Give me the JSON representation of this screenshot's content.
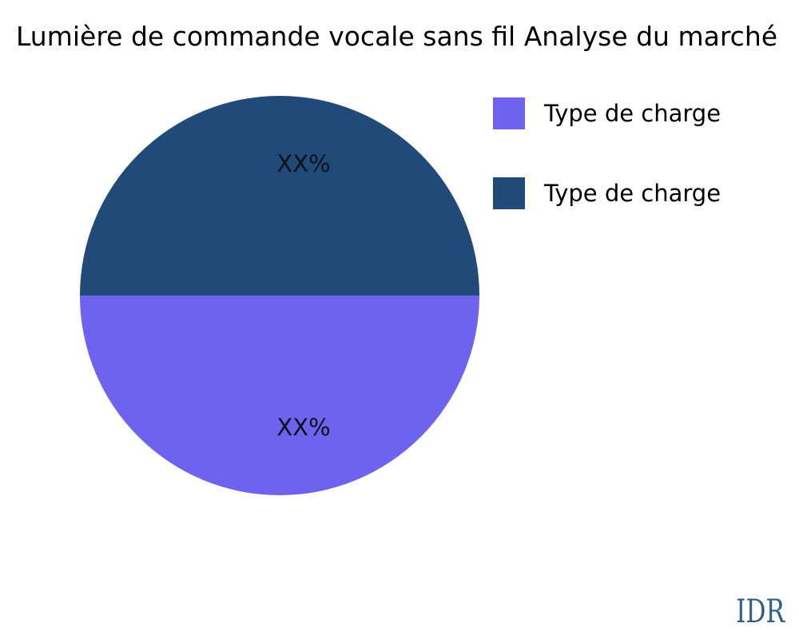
{
  "title": "Lumière de commande vocale sans fil Analyse du marché",
  "watermark": "IDR",
  "legend": {
    "items": [
      {
        "label": "Type de charge",
        "color": "#6E63EE"
      },
      {
        "label": "Type de charge",
        "color": "#204A77"
      }
    ]
  },
  "chart_data": {
    "type": "pie",
    "title": "Lumière de commande vocale sans fil Analyse du marché",
    "slices": [
      {
        "legend_label": "Type de charge",
        "display_label": "XX%",
        "value": 50,
        "color": "#6E63EE",
        "position": "bottom-half"
      },
      {
        "legend_label": "Type de charge",
        "display_label": "XX%",
        "value": 50,
        "color": "#204A77",
        "position": "top-half"
      }
    ],
    "values_unit": "percent (masked as XX%)",
    "legend_position": "upper-right",
    "source_label": "IDR",
    "colors": {
      "slice_1": "#6E63EE",
      "slice_2": "#204A77",
      "label_text": "#101018",
      "title_text": "#000000",
      "watermark_text": "#2E5F8A",
      "background": "#FFFFFF"
    }
  }
}
